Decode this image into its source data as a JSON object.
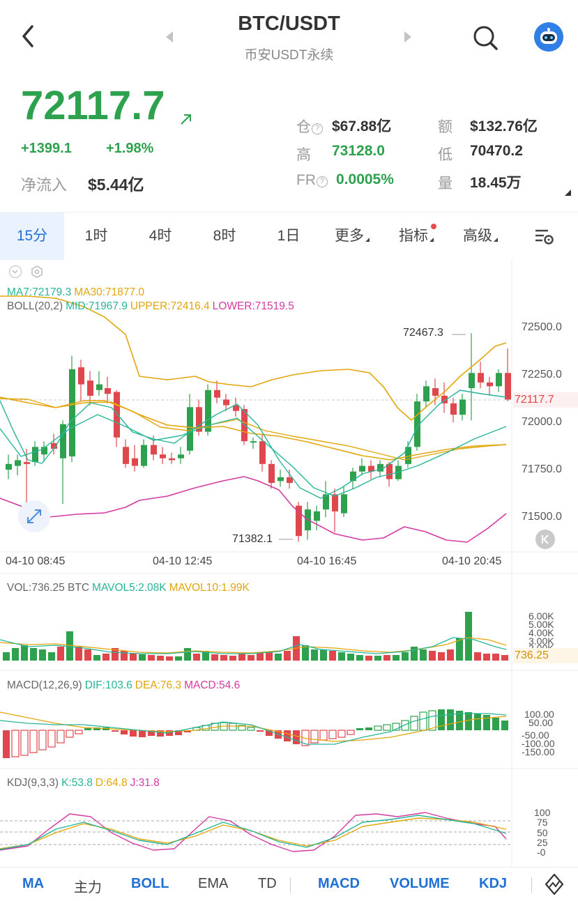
{
  "header": {
    "title": "BTC/USDT",
    "subtitle": "币安USDT永续"
  },
  "price": {
    "last": "72117.7",
    "change_abs": "+1399.1",
    "change_pct": "+1.98%",
    "netflow_label": "净流入",
    "netflow_value": "$5.44亿"
  },
  "stats": {
    "oi_label": "仓",
    "oi_value": "$67.88亿",
    "amount_label": "额",
    "amount_value": "$132.76亿",
    "high_label": "高",
    "high_value": "73128.0",
    "low_label": "低",
    "low_value": "70470.2",
    "fr_label": "FR",
    "fr_value": "0.0005%",
    "vol_label": "量",
    "vol_value": "18.45万",
    "help_glyph": "?"
  },
  "tabs": {
    "m15": "15分",
    "h1": "1时",
    "h4": "4时",
    "h8": "8时",
    "d1": "1日",
    "more": "更多",
    "indicators": "指标",
    "advanced": "高级"
  },
  "legend": {
    "ma7": "MA7:72179.3",
    "ma30": "MA30:71877.0",
    "boll_name": "BOLL(20,2)",
    "boll_mid": "MID:71967.9",
    "boll_upper": "UPPER:72416.4",
    "boll_lower": "LOWER:71519.5",
    "vol": "VOL:736.25 BTC",
    "mavol5": "MAVOL5:2.08K",
    "mavol10": "MAVOL10:1.99K",
    "macd_name": "MACD(12,26,9)",
    "dif": "DIF:103.6",
    "dea": "DEA:76.3",
    "macd": "MACD:54.6",
    "kdj_name": "KDJ(9,3,3)",
    "k": "K:53.8",
    "d": "D:64.8",
    "j": "J:31.8"
  },
  "chart_data": {
    "type": "candlestick",
    "price_axis": [
      "72500.0",
      "72250.0",
      "72000.0",
      "71750.0",
      "71500.0"
    ],
    "time_axis": [
      "04-10 08:45",
      "04-10 12:45",
      "04-10 16:45",
      "04-10 20:45"
    ],
    "current_price": "72117.7",
    "high_marker": "72467.3",
    "low_marker": "71382.1",
    "ylim": [
      71382.1,
      72467.3
    ],
    "vol_axis": [
      "6.00K",
      "5.00K",
      "4.00K",
      "3.00K",
      "2.00K"
    ],
    "vol_current": "736.25",
    "macd_axis": [
      "100.00",
      "50.00",
      "-50.00",
      "-100.00",
      "-150.00"
    ],
    "kdj_axis": [
      "100",
      "75",
      "50",
      "25",
      "-0"
    ],
    "colors": {
      "up": "#2ea14f",
      "down": "#e0474c",
      "ma7": "#26b59a",
      "ma30": "#e3a50c",
      "boll_band": "#e3a50c",
      "boll_lower": "#d43aa0"
    }
  },
  "bottombar": {
    "ma": "MA",
    "main_force": "主力",
    "boll": "BOLL",
    "ema": "EMA",
    "td": "TD",
    "macd": "MACD",
    "volume": "VOLUME",
    "kdj": "KDJ"
  }
}
